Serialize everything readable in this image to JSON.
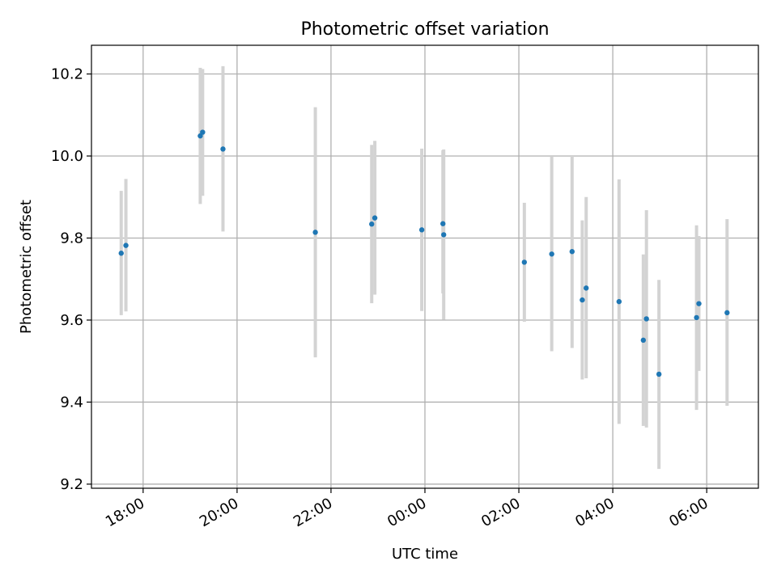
{
  "chart_data": {
    "type": "scatter",
    "title": "Photometric offset variation",
    "xlabel": "UTC time",
    "ylabel": "Photometric offset",
    "x_ticks": [
      "18:00",
      "20:00",
      "22:00",
      "00:00",
      "02:00",
      "04:00",
      "06:00"
    ],
    "x_tick_hours": [
      18,
      20,
      22,
      24,
      26,
      28,
      30
    ],
    "y_ticks": [
      "9.2",
      "9.4",
      "9.6",
      "9.8",
      "10.0",
      "10.2"
    ],
    "xlim_hours": [
      16.9,
      31.1
    ],
    "ylim": [
      9.19,
      10.27
    ],
    "grid": true,
    "marker_color": "#1f77b4",
    "errorbar_color": "#d3d3d3",
    "points": [
      {
        "x": "17:32",
        "y": 9.763,
        "ylow": 9.612,
        "yhigh": 9.915
      },
      {
        "x": "17:38",
        "y": 9.782,
        "ylow": 9.621,
        "yhigh": 9.944
      },
      {
        "x": "19:13",
        "y": 10.049,
        "ylow": 9.883,
        "yhigh": 10.215
      },
      {
        "x": "19:16",
        "y": 10.058,
        "ylow": 9.903,
        "yhigh": 10.212
      },
      {
        "x": "19:42",
        "y": 10.017,
        "ylow": 9.816,
        "yhigh": 10.219
      },
      {
        "x": "21:40",
        "y": 9.814,
        "ylow": 9.509,
        "yhigh": 10.119
      },
      {
        "x": "22:52",
        "y": 9.834,
        "ylow": 9.641,
        "yhigh": 10.027
      },
      {
        "x": "22:56",
        "y": 9.849,
        "ylow": 9.662,
        "yhigh": 10.037
      },
      {
        "x": "23:56",
        "y": 9.82,
        "ylow": 9.622,
        "yhigh": 10.018
      },
      {
        "x": "00:23",
        "y": 9.835,
        "ylow": 9.665,
        "yhigh": 10.014
      },
      {
        "x": "00:24",
        "y": 9.808,
        "ylow": 9.601,
        "yhigh": 10.016
      },
      {
        "x": "02:07",
        "y": 9.741,
        "ylow": 9.596,
        "yhigh": 9.886
      },
      {
        "x": "02:42",
        "y": 9.761,
        "ylow": 9.524,
        "yhigh": 9.998
      },
      {
        "x": "03:08",
        "y": 9.767,
        "ylow": 9.532,
        "yhigh": 10.0
      },
      {
        "x": "03:21",
        "y": 9.649,
        "ylow": 9.455,
        "yhigh": 9.843
      },
      {
        "x": "03:26",
        "y": 9.678,
        "ylow": 9.458,
        "yhigh": 9.9
      },
      {
        "x": "04:08",
        "y": 9.645,
        "ylow": 9.347,
        "yhigh": 9.943
      },
      {
        "x": "04:39",
        "y": 9.551,
        "ylow": 9.342,
        "yhigh": 9.76
      },
      {
        "x": "04:43",
        "y": 9.603,
        "ylow": 9.338,
        "yhigh": 9.868
      },
      {
        "x": "04:59",
        "y": 9.468,
        "ylow": 9.237,
        "yhigh": 9.698
      },
      {
        "x": "05:47",
        "y": 9.606,
        "ylow": 9.381,
        "yhigh": 9.831
      },
      {
        "x": "05:50",
        "y": 9.64,
        "ylow": 9.476,
        "yhigh": 9.805
      },
      {
        "x": "06:26",
        "y": 9.618,
        "ylow": 9.391,
        "yhigh": 9.846
      }
    ]
  }
}
